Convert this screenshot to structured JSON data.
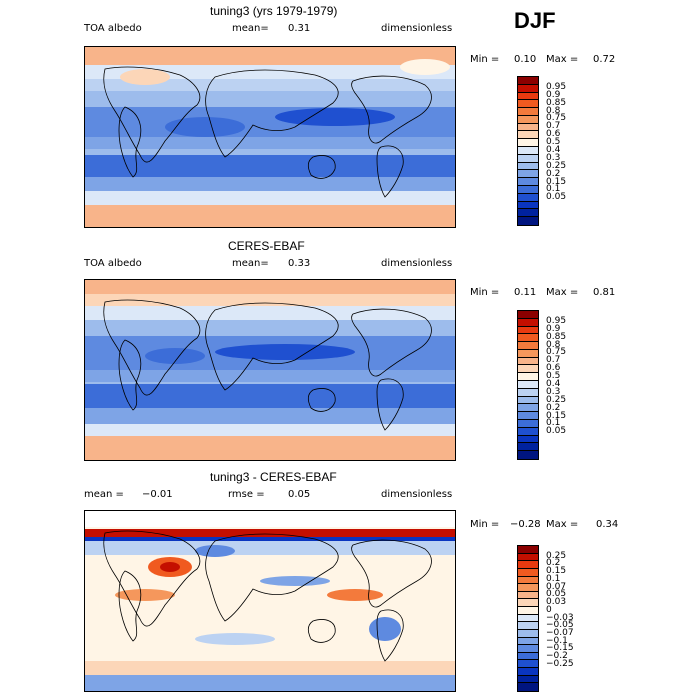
{
  "season_label": "DJF",
  "panels": [
    {
      "title": "tuning3 (yrs 1979-1979)",
      "left_label": "TOA albedo",
      "center_label": "mean=",
      "center_value": "0.31",
      "right_label": "dimensionless",
      "min_label": "Min =",
      "min_value": "0.10",
      "max_label": "Max =",
      "max_value": "0.72",
      "colorbar": {
        "colors": [
          "#8b0000",
          "#c40f00",
          "#e83a10",
          "#f05a20",
          "#f37a3c",
          "#f5975c",
          "#f8b48a",
          "#fcd6b8",
          "#fff5e6",
          "#dce8f8",
          "#bcd2f2",
          "#9dbcec",
          "#7ea4e6",
          "#5e8ae0",
          "#3c6dd8",
          "#1f50d0",
          "#0a35c0",
          "#00229f",
          "#001580"
        ],
        "labels": [
          "0.95",
          "0.9",
          "0.85",
          "0.8",
          "0.75",
          "0.7",
          "0.6",
          "0.5",
          "0.4",
          "0.3",
          "0.25",
          "0.2",
          "0.15",
          "0.1",
          "0.05"
        ]
      }
    },
    {
      "title": "CERES-EBAF",
      "left_label": "TOA albedo",
      "center_label": "mean=",
      "center_value": "0.33",
      "right_label": "dimensionless",
      "min_label": "Min =",
      "min_value": "0.11",
      "max_label": "Max =",
      "max_value": "0.81",
      "colorbar": {
        "colors": [
          "#8b0000",
          "#c40f00",
          "#e83a10",
          "#f05a20",
          "#f37a3c",
          "#f5975c",
          "#f8b48a",
          "#fcd6b8",
          "#fff5e6",
          "#dce8f8",
          "#bcd2f2",
          "#9dbcec",
          "#7ea4e6",
          "#5e8ae0",
          "#3c6dd8",
          "#1f50d0",
          "#0a35c0",
          "#00229f",
          "#001580"
        ],
        "labels": [
          "0.95",
          "0.9",
          "0.85",
          "0.8",
          "0.75",
          "0.7",
          "0.6",
          "0.5",
          "0.4",
          "0.3",
          "0.25",
          "0.2",
          "0.15",
          "0.1",
          "0.05"
        ]
      }
    },
    {
      "title": "tuning3 - CERES-EBAF",
      "left_label": "mean =",
      "left_value": "−0.01",
      "center_label": "rmse =",
      "center_value": "0.05",
      "right_label": "dimensionless",
      "min_label": "Min =",
      "min_value": "−0.28",
      "max_label": "Max =",
      "max_value": "0.34",
      "colorbar": {
        "colors": [
          "#8b0000",
          "#c40f00",
          "#e83a10",
          "#f05a20",
          "#f37a3c",
          "#f5975c",
          "#f8b48a",
          "#fcd6b8",
          "#fff5e6",
          "#dce8f8",
          "#bcd2f2",
          "#9dbcec",
          "#7ea4e6",
          "#5e8ae0",
          "#3c6dd8",
          "#1f50d0",
          "#0a35c0",
          "#00229f",
          "#001580"
        ],
        "labels": [
          "0.25",
          "0.2",
          "0.15",
          "0.1",
          "0.07",
          "0.05",
          "0.03",
          "0",
          "−0.03",
          "−0.05",
          "−0.07",
          "−0.1",
          "−0.15",
          "−0.2",
          "−0.25"
        ]
      }
    }
  ]
}
